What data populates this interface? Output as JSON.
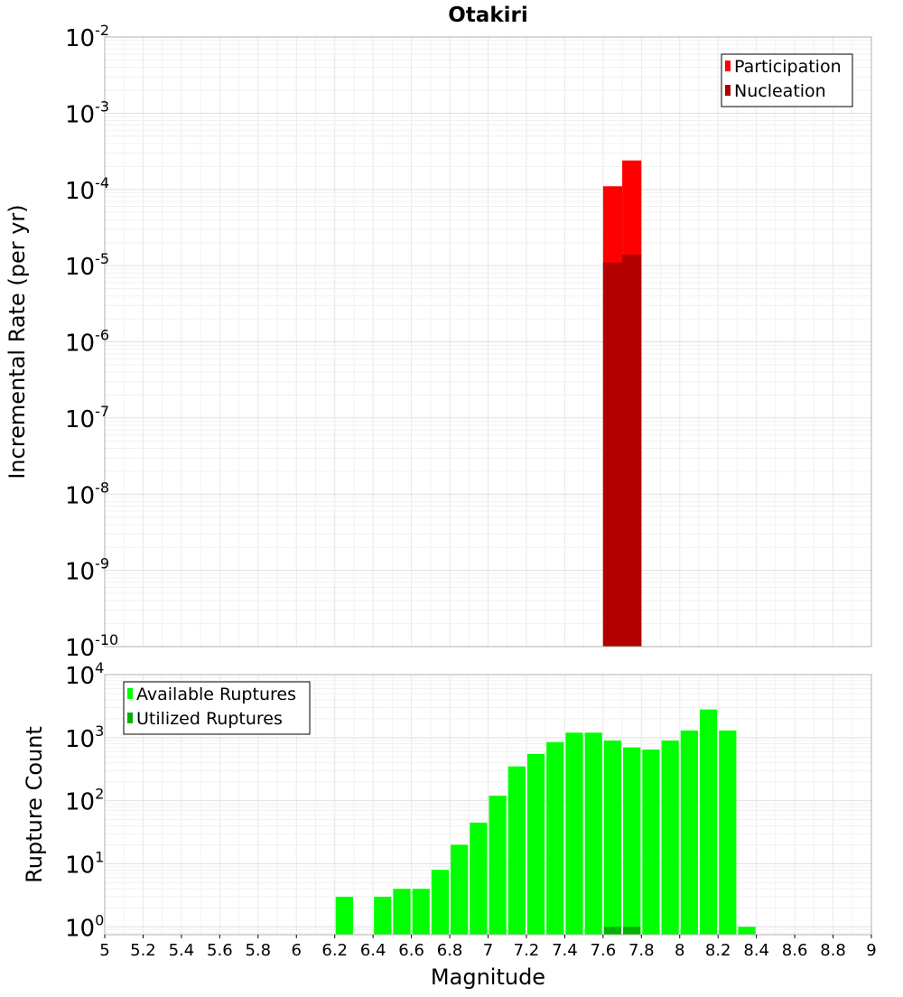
{
  "chart_data": [
    {
      "type": "bar",
      "title": "Otakiri",
      "xlabel": "",
      "ylabel": "Incremental Rate (per yr)",
      "yscale": "log",
      "ylim": [
        1e-10,
        0.01
      ],
      "xlim": [
        5,
        9
      ],
      "ytick_labels": [
        {
          "base": "10",
          "exp": "-10"
        },
        {
          "base": "10",
          "exp": "-9"
        },
        {
          "base": "10",
          "exp": "-8"
        },
        {
          "base": "10",
          "exp": "-7"
        },
        {
          "base": "10",
          "exp": "-6"
        },
        {
          "base": "10",
          "exp": "-5"
        },
        {
          "base": "10",
          "exp": "-4"
        },
        {
          "base": "10",
          "exp": "-3"
        },
        {
          "base": "10",
          "exp": "-2"
        }
      ],
      "grid": true,
      "legend_position": "top-right",
      "series": [
        {
          "name": "Participation",
          "color": "#ff0000",
          "x": [
            7.65,
            7.75
          ],
          "values": [
            0.00011,
            0.00024
          ]
        },
        {
          "name": "Nucleation",
          "color": "#b20000",
          "x": [
            7.65,
            7.75
          ],
          "values": [
            1.1e-05,
            1.4e-05
          ]
        }
      ]
    },
    {
      "type": "bar",
      "title": "",
      "xlabel": "Magnitude",
      "ylabel": "Rupture Count",
      "yscale": "log",
      "ylim": [
        0.75,
        10000
      ],
      "xlim": [
        5,
        9
      ],
      "xtick_labels": [
        "5",
        "5.2",
        "5.4",
        "5.6",
        "5.8",
        "6",
        "6.2",
        "6.4",
        "6.6",
        "6.8",
        "7",
        "7.2",
        "7.4",
        "7.6",
        "7.8",
        "8",
        "8.2",
        "8.4",
        "8.6",
        "8.8",
        "9"
      ],
      "ytick_labels": [
        {
          "base": "10",
          "exp": "0"
        },
        {
          "base": "10",
          "exp": "1"
        },
        {
          "base": "10",
          "exp": "2"
        },
        {
          "base": "10",
          "exp": "3"
        },
        {
          "base": "10",
          "exp": "4"
        }
      ],
      "grid": true,
      "legend_position": "top-left",
      "series": [
        {
          "name": "Available Ruptures",
          "color": "#00ff00",
          "x": [
            6.25,
            6.45,
            6.55,
            6.65,
            6.75,
            6.85,
            6.95,
            7.05,
            7.15,
            7.25,
            7.35,
            7.45,
            7.55,
            7.65,
            7.75,
            7.85,
            7.95,
            8.05,
            8.15,
            8.25,
            8.35
          ],
          "values": [
            3,
            3,
            4,
            4,
            8,
            20,
            45,
            120,
            350,
            550,
            850,
            1200,
            1200,
            900,
            700,
            650,
            900,
            1300,
            2800,
            1300,
            1
          ]
        },
        {
          "name": "Utilized Ruptures",
          "color": "#00b200",
          "x": [
            7.65,
            7.75
          ],
          "values": [
            1,
            1
          ]
        }
      ]
    }
  ]
}
